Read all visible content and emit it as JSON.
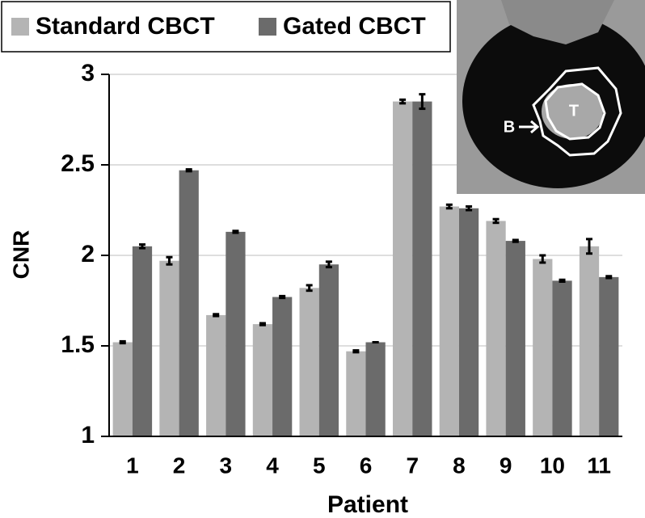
{
  "chart_data": {
    "type": "bar",
    "x_label": "Patient",
    "y_label": "CNR",
    "categories": [
      "1",
      "2",
      "3",
      "4",
      "5",
      "6",
      "7",
      "8",
      "9",
      "10",
      "11"
    ],
    "series": [
      {
        "name": "Standard CBCT",
        "color": "#b4b4b4",
        "values": [
          1.52,
          1.97,
          1.67,
          1.62,
          1.82,
          1.47,
          2.85,
          2.27,
          2.19,
          1.98,
          2.05
        ],
        "errors": [
          0.005,
          0.02,
          0.005,
          0.005,
          0.015,
          0.005,
          0.01,
          0.01,
          0.01,
          0.02,
          0.04
        ]
      },
      {
        "name": "Gated CBCT",
        "color": "#6b6b6b",
        "values": [
          2.05,
          2.47,
          2.13,
          1.77,
          1.95,
          1.52,
          2.85,
          2.26,
          2.08,
          1.86,
          1.88
        ],
        "errors": [
          0.01,
          0.005,
          0.005,
          0.005,
          0.015,
          0.0,
          0.04,
          0.01,
          0.005,
          0.005,
          0.005
        ]
      }
    ],
    "ylim": [
      1,
      3
    ],
    "yticks": [
      1,
      1.5,
      2,
      2.5,
      3
    ],
    "grid": true,
    "legend": "top-left",
    "annotations": [
      "T",
      "B"
    ]
  }
}
